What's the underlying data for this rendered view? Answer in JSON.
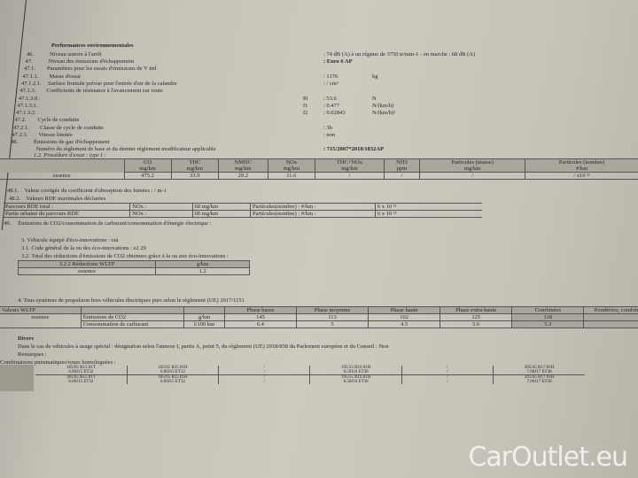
{
  "header": {
    "title": "Performances environnementales"
  },
  "items": [
    {
      "num": "46.",
      "label": "Niveau sonore à l'arrêt",
      "value": ": 74 dB (A)   à un régime de 3750 tr/min-1 - en marche :    68 dB (A)"
    },
    {
      "num": "47.",
      "label": "Niveau des émissions d'échappement",
      "value": ": Euro 6 AP"
    },
    {
      "num": "47.1.",
      "label": "Paramètres pour les essais d'émissions de V ind",
      "value": ""
    },
    {
      "num": "47.1.1.",
      "label": "Masse d'essai",
      "value": ": 1176",
      "unit": "kg"
    },
    {
      "num": "47.1.2.1.",
      "label": "Surface frontale prévue pour l'entrée d'air de la calandre",
      "value": ": / cm²"
    },
    {
      "num": "47.1.3.",
      "label": "Coefficients de résistance à l'avancement sur route",
      "value": ""
    },
    {
      "num": "47.1.3.0.",
      "coef": "f0",
      "value": ": 53.6",
      "unit": "N"
    },
    {
      "num": "47.1.3.1.",
      "coef": "f1",
      "value": ": 0.477",
      "unit": "N/(km/h)"
    },
    {
      "num": "47.1.3.2.",
      "coef": "f2",
      "value": ": 0.02843",
      "unit": "N/(km/h)²"
    },
    {
      "num": "47.2.",
      "label": "Cycle de conduite",
      "value": ""
    },
    {
      "num": "47.2.1.",
      "label": "Classe de cycle de conduite",
      "value": ": 3b"
    },
    {
      "num": "47.2.3.",
      "label": "Vitesse limitée",
      "value": ": non"
    },
    {
      "num": "48.",
      "label": "Émissions de gaz d'échappement",
      "value": ""
    },
    {
      "num": "",
      "label": "Numéro du règlement de base et du dernier règlement modificateur applicable",
      "value": ": 715/2007*2018/1832AP"
    }
  ],
  "procedure": "1.2. Procédure d'essai : type I :",
  "emissions_table": {
    "headers": [
      [
        "CO",
        "mg/km"
      ],
      [
        "THC",
        "mg/km"
      ],
      [
        "NMHC",
        "mg/km"
      ],
      [
        "NOx",
        "mg/km"
      ],
      [
        "THC+NOx",
        "mg/km"
      ],
      [
        "NH3",
        "ppm"
      ],
      [
        "Particules (masse)",
        "mg/km"
      ],
      [
        "Particules (nombre)",
        "#/km"
      ]
    ],
    "row": {
      "fuel": "essence",
      "values": [
        "475.2",
        "33.9",
        "29.2",
        "11.6",
        "/",
        "/",
        "/",
        "/ x10 ¹¹"
      ]
    }
  },
  "line_481": {
    "num": "48.1.",
    "text": "Valeur corrigée du coefficient d'absorption des fumées : / m-1"
  },
  "line_482": {
    "num": "48.2.",
    "text": "Valeurs RDE maximales déclarées"
  },
  "rde_table": [
    {
      "label": "Parcours RDE total :",
      "pollutant": "NOx :",
      "value": "60 mg/km",
      "part": "Particules(nombre) : #/km :",
      "part_value": "6 x 10 ¹¹"
    },
    {
      "label": "Partie urbaine du parcours RDE",
      "pollutant": "NOx :",
      "value": "60 mg/km",
      "part": "Particules(nombre) : #/km :",
      "part_value": "6 x 10 ¹¹"
    }
  ],
  "line_49": {
    "num": "49.",
    "text": "Émissions de CO2/consommation de carburant/consommation d'énergie électrique :"
  },
  "eco": {
    "l3": "3. Véhicule équipé d'éco-innovations : oui",
    "l31": "3.1. Code général de la ou des éco-innovations : e2 29",
    "l32": "3.2. Total des réductions d'émissions de CO2 obtenues grâce à la ou aux éco-innovations :",
    "table": {
      "h1": "3.2.2 Réductions WLTP",
      "h2": "g/km",
      "fuel": "essence",
      "value": "1.2"
    }
  },
  "section4": "4. Tous systèmes de propulsion hors véhicules électriques purs selon le règlement (UE) 2017/1151",
  "wltp": {
    "title": "Valeurs WLTP",
    "fuel": "essence",
    "phases": [
      "Phase basse",
      "Phase moyenne",
      "Phase haute",
      "Phase extra-haute",
      "Combinées",
      "Pondérées, combinées"
    ],
    "rows": [
      {
        "label": "Émissions de CO2",
        "unit": "g/km",
        "values": [
          "145",
          "113",
          "102",
          "125",
          "118",
          ""
        ]
      },
      {
        "label": "Consommation de carburant",
        "unit": "l/100 km",
        "values": [
          "6.4",
          "5",
          "4.5",
          "5.6",
          "5.3",
          ""
        ]
      }
    ]
  },
  "divers": {
    "title": "Divers",
    "text": "Dans le cas de véhicules à usage spécial : désignation selon l'annexe I, partie A, point 5, du règlement (UE) 2018/858 du Parlement européen et du Conseil : Non",
    "remarques": "Remarques :",
    "tyres_label": "Combinaisons pneumatiques/roues homologuées :"
  },
  "tyres": [
    [
      "185/65 R15 81T",
      "6.00J15 ET32",
      "185/65 R15 81H",
      "6.00J15 ET32",
      "/",
      "/",
      "195/55 R16 81H",
      "6.50J16 ET38",
      "/",
      "/",
      "205/45 R17 81H",
      "7.00J17 ET38"
    ],
    [
      "185/65 R15 81T",
      "6.00J15 ET32",
      "185/65 R15 81H",
      "6.00J15 ET32",
      "/",
      "/",
      "195/55 R16 81H",
      "6.50J16 ET38",
      "/",
      "/",
      "205/45 R17 81H",
      "7.00J17 ET38"
    ]
  ],
  "watermark": "CarOutlet.eu"
}
